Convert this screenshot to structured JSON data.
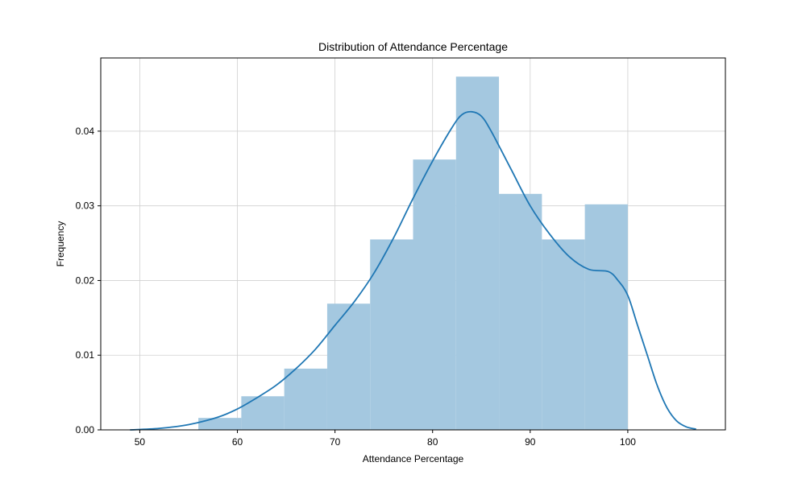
{
  "chart_data": {
    "type": "bar",
    "title": "Distribution of Attendance Percentage",
    "xlabel": "Attendance Percentage",
    "ylabel": "Frequency",
    "xlim": [
      46,
      110
    ],
    "ylim": [
      0,
      0.0498
    ],
    "xticks": [
      50,
      60,
      70,
      80,
      90,
      100
    ],
    "yticks": [
      0.0,
      0.01,
      0.02,
      0.03,
      0.04
    ],
    "ytick_labels": [
      "0.00",
      "0.01",
      "0.02",
      "0.03",
      "0.04"
    ],
    "grid": true,
    "histogram": {
      "bin_edges": [
        56.0,
        60.4,
        64.8,
        69.2,
        73.6,
        78.0,
        82.4,
        86.8,
        91.2,
        95.6,
        100.0
      ],
      "values": [
        0.0016,
        0.0045,
        0.0082,
        0.0169,
        0.0255,
        0.0362,
        0.0473,
        0.0316,
        0.0255,
        0.0302
      ],
      "color": "#a4c8e0"
    },
    "kde": {
      "x": [
        49,
        52,
        55,
        58,
        60,
        62,
        64,
        66,
        68,
        70,
        72,
        74,
        76,
        78,
        80,
        82,
        83,
        84,
        85,
        86,
        88,
        90,
        92,
        94,
        96,
        98,
        99,
        100,
        101,
        102,
        103,
        104,
        105,
        106,
        107
      ],
      "y": [
        0.0,
        0.0002,
        0.0007,
        0.0017,
        0.0028,
        0.0043,
        0.006,
        0.0082,
        0.0108,
        0.014,
        0.0172,
        0.021,
        0.0257,
        0.031,
        0.036,
        0.0405,
        0.0422,
        0.0426,
        0.042,
        0.04,
        0.035,
        0.03,
        0.0262,
        0.0232,
        0.0215,
        0.0212,
        0.02,
        0.018,
        0.014,
        0.01,
        0.006,
        0.003,
        0.0012,
        0.0004,
        0.0001
      ],
      "color": "#1f77b4"
    }
  }
}
